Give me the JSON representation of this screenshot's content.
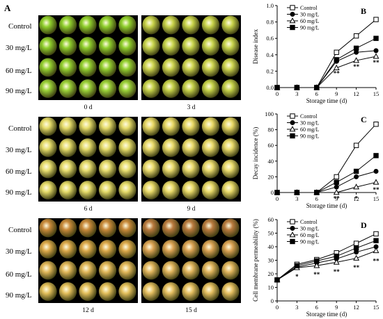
{
  "panel_a": {
    "letter": "A",
    "rows": [
      "Control",
      "30 mg/L",
      "60 mg/L",
      "90 mg/L"
    ],
    "blocks": [
      {
        "day": "0 d",
        "colors": [
          "#8fcf2c",
          "#8fcf2c",
          "#94d130",
          "#9bd238"
        ]
      },
      {
        "day": "3 d",
        "colors": [
          "#c8d34a",
          "#c9d64e",
          "#cfd651",
          "#c6d24a"
        ]
      },
      {
        "day": "6 d",
        "colors": [
          "#e6dc6a",
          "#e5dc6a",
          "#e8de6f",
          "#e6dc6a"
        ]
      },
      {
        "day": "9 d",
        "colors": [
          "#e8d865",
          "#e9da6a",
          "#ebdc6e",
          "#eadb6a"
        ]
      },
      {
        "day": "12 d",
        "colors": [
          "#c98a3a",
          "#dca94a",
          "#e2b85a",
          "#e4c05c"
        ]
      },
      {
        "day": "15 d",
        "colors": [
          "#b97a3e",
          "#dba354",
          "#e2b65e",
          "#e6c062"
        ]
      }
    ]
  },
  "chart_data": [
    {
      "type": "line",
      "letter": "B",
      "xlabel": "Storage time (d)",
      "ylabel": "Disease index",
      "x": [
        0,
        3,
        6,
        9,
        12,
        15
      ],
      "xticks": [
        "0",
        "3",
        "6",
        "9",
        "12",
        "15"
      ],
      "ylim": [
        0,
        1.0
      ],
      "yticks": [
        "0.0",
        "0.2",
        "0.4",
        "0.6",
        "0.8",
        "1.0"
      ],
      "legend": "top-left",
      "series": [
        {
          "name": "Control",
          "marker": "open-square",
          "values": [
            0,
            0,
            0,
            0.43,
            0.63,
            0.83
          ]
        },
        {
          "name": "30 mg/L",
          "marker": "filled-circle",
          "values": [
            0,
            0,
            0,
            0.32,
            0.43,
            0.45
          ]
        },
        {
          "name": "60 mg/L",
          "marker": "open-triangle",
          "values": [
            0,
            0,
            0,
            0.24,
            0.33,
            0.38
          ]
        },
        {
          "name": "90 mg/L",
          "marker": "filled-square",
          "values": [
            0,
            0,
            0,
            0.34,
            0.48,
            0.6
          ]
        }
      ],
      "annotations": [
        {
          "x": 9,
          "y": 0.15,
          "text": "**"
        },
        {
          "x": 12,
          "y": 0.23,
          "text": "**"
        },
        {
          "x": 15,
          "y": 0.28,
          "text": "**"
        }
      ]
    },
    {
      "type": "line",
      "letter": "C",
      "xlabel": "Storage time (d)",
      "ylabel": "Decay incidence (%)",
      "x": [
        0,
        3,
        6,
        9,
        12,
        15
      ],
      "xticks": [
        "0",
        "3",
        "6",
        "9",
        "12",
        "15"
      ],
      "ylim": [
        0,
        100
      ],
      "yticks": [
        "0",
        "20",
        "40",
        "60",
        "80",
        "100"
      ],
      "legend": "top-left",
      "series": [
        {
          "name": "Control",
          "marker": "open-square",
          "values": [
            0,
            0,
            0,
            20,
            60,
            87
          ]
        },
        {
          "name": "30 mg/L",
          "marker": "filled-circle",
          "values": [
            0,
            0,
            0,
            7,
            20,
            27
          ]
        },
        {
          "name": "60 mg/L",
          "marker": "open-triangle",
          "values": [
            0,
            0,
            0,
            0,
            7,
            13
          ]
        },
        {
          "name": "90 mg/L",
          "marker": "filled-square",
          "values": [
            0,
            0,
            0,
            13,
            27,
            47
          ]
        }
      ],
      "annotations": [
        {
          "x": 9,
          "y": -10,
          "text": "**"
        },
        {
          "x": 12,
          "y": -10,
          "text": "*"
        },
        {
          "x": 15,
          "y": 1,
          "text": "**"
        }
      ]
    },
    {
      "type": "line",
      "letter": "D",
      "xlabel": "Storage time (d)",
      "ylabel": "Cell membrane permeability (%)",
      "x": [
        0,
        3,
        6,
        9,
        12,
        15
      ],
      "xticks": [
        "0",
        "3",
        "6",
        "9",
        "12",
        "15"
      ],
      "ylim": [
        0,
        60
      ],
      "yticks": [
        "0",
        "10",
        "20",
        "30",
        "40",
        "50",
        "60"
      ],
      "legend": "top-left",
      "series": [
        {
          "name": "Control",
          "marker": "open-square",
          "values": [
            15.5,
            27,
            30.5,
            35.5,
            42.5,
            49.5
          ]
        },
        {
          "name": "30 mg/L",
          "marker": "filled-circle",
          "values": [
            15.5,
            25,
            28,
            31,
            36,
            40
          ]
        },
        {
          "name": "60 mg/L",
          "marker": "open-triangle",
          "values": [
            15.5,
            24.5,
            26,
            28.5,
            31.5,
            37
          ]
        },
        {
          "name": "90 mg/L",
          "marker": "filled-square",
          "values": [
            15.5,
            26,
            29.5,
            33,
            39,
            44.5
          ]
        }
      ],
      "annotations": [
        {
          "x": 3,
          "y": 16.5,
          "text": "*"
        },
        {
          "x": 6,
          "y": 18,
          "text": "**"
        },
        {
          "x": 9,
          "y": 20,
          "text": "**"
        },
        {
          "x": 12,
          "y": 23,
          "text": "**"
        },
        {
          "x": 15,
          "y": 28,
          "text": "**"
        }
      ]
    }
  ]
}
